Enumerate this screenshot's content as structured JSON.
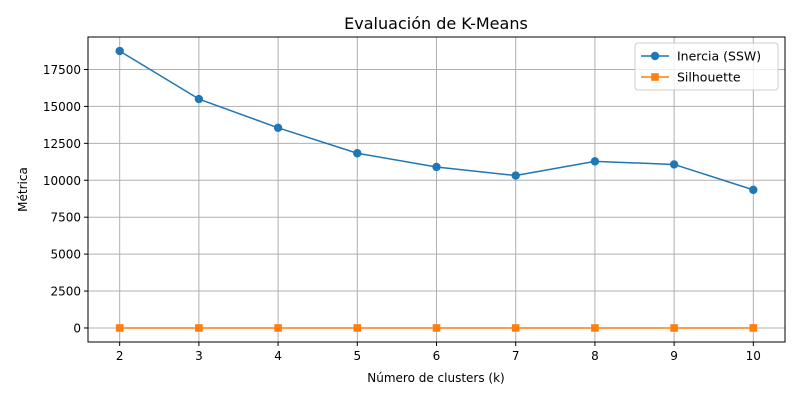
{
  "chart_data": {
    "type": "line",
    "title": "Evaluación de K-Means",
    "xlabel": "Número de clusters (k)",
    "ylabel": "Métrica",
    "x": [
      2,
      3,
      4,
      5,
      6,
      7,
      8,
      9,
      10
    ],
    "xlim": [
      1.6,
      10.4
    ],
    "ylim": [
      -950,
      19700
    ],
    "xticks": [
      2,
      3,
      4,
      5,
      6,
      7,
      8,
      9,
      10
    ],
    "yticks": [
      0,
      2500,
      5000,
      7500,
      10000,
      12500,
      15000,
      17500
    ],
    "grid": true,
    "legend_position": "top-right",
    "series": [
      {
        "name": "Inercia (SSW)",
        "values": [
          18750,
          15500,
          13550,
          11830,
          10900,
          10320,
          11280,
          11070,
          9350
        ],
        "color": "#1f77b4",
        "marker": "circle"
      },
      {
        "name": "Silhouette",
        "values": [
          0.3,
          0.3,
          0.3,
          0.3,
          0.3,
          0.3,
          0.3,
          0.3,
          0.3
        ],
        "color": "#ff7f0e",
        "marker": "square"
      }
    ]
  }
}
